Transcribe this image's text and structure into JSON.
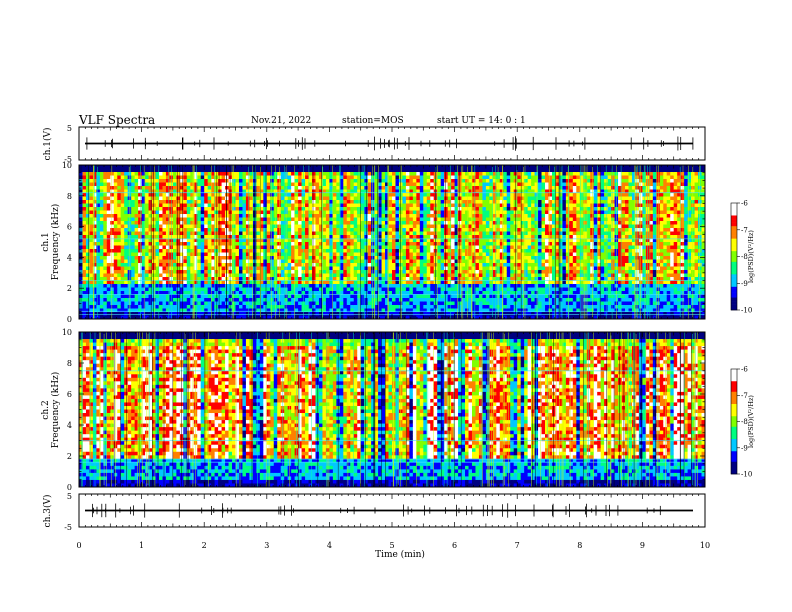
{
  "header": {
    "title": "VLF Spectra",
    "date": "Nov.21, 2022",
    "station": "station=MOS",
    "start": "start UT =  14: 0  : 1"
  },
  "colors": {
    "colormap": [
      "#000080",
      "#0000ff",
      "#00c8ff",
      "#00ff80",
      "#80ff00",
      "#ffff00",
      "#ff8000",
      "#ff0000",
      "#ffffff"
    ],
    "trace": "#000000",
    "background": "#ffffff"
  },
  "chart_data": [
    {
      "type": "line",
      "panel": "ch1-waveform",
      "ylabel": "ch.1(V)",
      "ylim": [
        -5,
        5
      ],
      "yticks": [
        "5",
        "-5"
      ],
      "level": 0,
      "xlim": [
        0,
        10
      ]
    },
    {
      "type": "heatmap",
      "panel": "ch1-spectrogram",
      "ylabel": [
        "ch.1",
        "Frequency (kHz)"
      ],
      "ylim": [
        0,
        10
      ],
      "yticks": [
        "0",
        "2",
        "4",
        "6",
        "8",
        "10"
      ],
      "xlim": [
        0,
        10
      ],
      "colorbar": {
        "label": "log(PSD)(V²/Hz)",
        "range": [
          -10,
          -6
        ],
        "ticks": [
          "-6",
          "-7",
          "-8",
          "-9",
          "-10"
        ]
      },
      "lines_khz": [
        0.3,
        0.5,
        1.6,
        2.5,
        5.2,
        8.2
      ],
      "energy_band_khz": [
        2.2,
        9.5
      ],
      "level": 0.55
    },
    {
      "type": "heatmap",
      "panel": "ch2-spectrogram",
      "ylabel": [
        "ch.2",
        "Frequency (kHz)"
      ],
      "ylim": [
        0,
        10
      ],
      "yticks": [
        "0",
        "2",
        "4",
        "6",
        "8",
        "10"
      ],
      "xlim": [
        0,
        10
      ],
      "colorbar": {
        "label": "log(PSD)(V²/Hz)",
        "range": [
          -10,
          -6
        ],
        "ticks": [
          "-6",
          "-7",
          "-8",
          "-9",
          "-10"
        ]
      },
      "lines_khz": [
        1.6,
        1.8,
        3.0,
        7.5
      ],
      "energy_band_khz": [
        1.8,
        9.0
      ],
      "level": 0.68
    },
    {
      "type": "line",
      "panel": "ch3-waveform",
      "ylabel": "ch.3(V)",
      "ylim": [
        -5,
        5
      ],
      "yticks": [
        "5",
        "-5"
      ],
      "level": 0,
      "xlim": [
        0,
        10
      ]
    }
  ],
  "xaxis": {
    "label": "Time (min)",
    "ticks": [
      "0",
      "1",
      "2",
      "3",
      "4",
      "5",
      "6",
      "7",
      "8",
      "9",
      "10"
    ]
  }
}
